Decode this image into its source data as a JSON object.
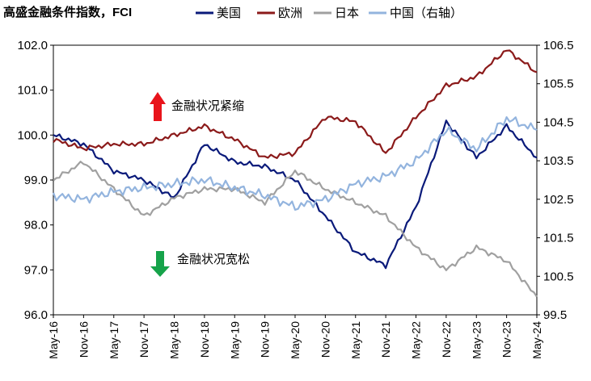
{
  "chart_data": {
    "type": "line",
    "title": "高盛金融条件指数，FCI",
    "x": [
      "May-16",
      "Nov-16",
      "May-17",
      "Nov-17",
      "May-18",
      "Nov-18",
      "May-19",
      "Nov-19",
      "May-20",
      "Nov-20",
      "May-21",
      "Nov-21",
      "May-22",
      "Nov-22",
      "May-23",
      "Nov-23",
      "May-24"
    ],
    "ylim_left": [
      96.0,
      102.0
    ],
    "yticks_left": [
      "96.0",
      "97.0",
      "98.0",
      "99.0",
      "100.0",
      "101.0",
      "102.0"
    ],
    "ylim_right": [
      99.5,
      106.5
    ],
    "yticks_right": [
      "99.5",
      "100.5",
      "101.5",
      "102.5",
      "103.5",
      "104.5",
      "105.5",
      "106.5"
    ],
    "legend_position": "top",
    "series": [
      {
        "name": "美国",
        "axis": "left",
        "color": "#0a1a7a",
        "values": [
          100.0,
          99.8,
          99.2,
          99.0,
          98.6,
          99.8,
          99.4,
          99.3,
          99.0,
          98.2,
          97.4,
          97.1,
          98.4,
          100.3,
          99.5,
          100.2,
          99.5
        ]
      },
      {
        "name": "欧洲",
        "axis": "left",
        "color": "#8b1a1a",
        "values": [
          99.9,
          99.7,
          99.8,
          99.8,
          100.0,
          100.2,
          99.9,
          99.5,
          99.6,
          100.4,
          100.3,
          99.6,
          100.4,
          101.1,
          101.3,
          101.9,
          101.4
        ]
      },
      {
        "name": "日本",
        "axis": "left",
        "color": "#a0a0a0",
        "values": [
          99.0,
          99.4,
          98.8,
          98.2,
          98.6,
          98.8,
          98.8,
          98.5,
          99.2,
          98.8,
          98.5,
          98.2,
          97.5,
          97.0,
          97.5,
          97.2,
          96.4
        ]
      },
      {
        "name": "中国（右轴）",
        "axis": "right",
        "color": "#93b4de",
        "values": [
          102.6,
          102.5,
          102.7,
          102.8,
          102.9,
          103.0,
          102.8,
          102.6,
          102.3,
          102.5,
          102.9,
          103.1,
          103.5,
          104.3,
          103.8,
          104.6,
          104.3
        ]
      }
    ],
    "annotations": [
      {
        "text": "金融状况紧缩",
        "arrow": "up",
        "color": "#e8141b"
      },
      {
        "text": "金融状况宽松",
        "arrow": "down",
        "color": "#16a34a"
      }
    ]
  }
}
